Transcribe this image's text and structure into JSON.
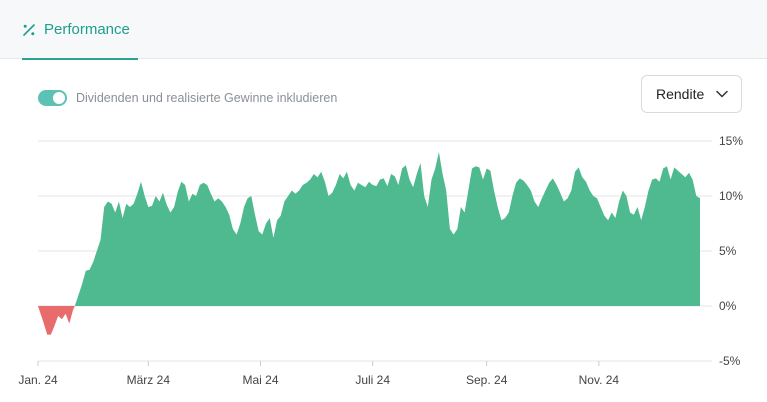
{
  "tab": {
    "label": "Performance",
    "icon": "percent-icon",
    "color": "#1e9e8b"
  },
  "toggle": {
    "label": "Dividenden und realisierte Gewinne inkludieren",
    "checked": true,
    "color": "#5cc3b4"
  },
  "select": {
    "value": "Rendite",
    "icon": "chevron-down-icon"
  },
  "chart_data": {
    "type": "area",
    "positive_color": "#4fba90",
    "negative_color": "#e86c6c",
    "ylim": [
      -5,
      15
    ],
    "yticks": [
      {
        "value": 15,
        "label": "15%"
      },
      {
        "value": 10,
        "label": "10%"
      },
      {
        "value": 5,
        "label": "5%"
      },
      {
        "value": 0,
        "label": "0%"
      },
      {
        "value": -5,
        "label": "-5%"
      }
    ],
    "xlim": [
      0,
      360
    ],
    "xticks": [
      {
        "day": 0,
        "label": "Jan. 24"
      },
      {
        "day": 60,
        "label": "März 24"
      },
      {
        "day": 121,
        "label": "Mai 24"
      },
      {
        "day": 182,
        "label": "Juli 24"
      },
      {
        "day": 244,
        "label": "Sep. 24"
      },
      {
        "day": 305,
        "label": "Nov. 24"
      }
    ],
    "x": [
      0,
      3,
      5,
      7,
      9,
      11,
      13,
      15,
      17,
      19,
      20,
      22,
      24,
      26,
      28,
      30,
      32,
      34,
      36,
      38,
      40,
      42,
      44,
      46,
      48,
      50,
      52,
      54,
      56,
      58,
      60,
      62,
      64,
      66,
      68,
      70,
      72,
      74,
      76,
      78,
      80,
      82,
      84,
      86,
      88,
      90,
      92,
      94,
      96,
      98,
      100,
      102,
      104,
      106,
      108,
      110,
      112,
      114,
      116,
      118,
      120,
      122,
      124,
      126,
      128,
      130,
      132,
      134,
      136,
      138,
      140,
      142,
      144,
      146,
      148,
      150,
      152,
      154,
      156,
      158,
      160,
      162,
      164,
      166,
      168,
      170,
      172,
      174,
      176,
      178,
      180,
      182,
      184,
      186,
      188,
      190,
      192,
      194,
      196,
      198,
      200,
      202,
      204,
      206,
      208,
      210,
      212,
      214,
      216,
      218,
      220,
      222,
      224,
      226,
      228,
      230,
      232,
      234,
      236,
      238,
      240,
      242,
      244,
      246,
      248,
      250,
      252,
      254,
      256,
      258,
      260,
      262,
      264,
      266,
      268,
      270,
      272,
      274,
      276,
      278,
      280,
      282,
      284,
      286,
      288,
      290,
      292,
      294,
      296,
      298,
      300,
      302,
      304,
      306,
      308,
      310,
      312,
      314,
      316,
      318,
      320,
      322,
      324,
      326,
      328,
      330,
      332,
      334,
      336,
      338,
      340,
      342,
      344,
      346,
      348,
      350,
      352,
      354,
      356,
      358,
      360
    ],
    "y": [
      0,
      -1.5,
      -2.6,
      -2.6,
      -1.8,
      -0.9,
      -1.2,
      -0.7,
      -1.6,
      -0.4,
      0,
      1.0,
      2.0,
      3.2,
      3.3,
      4.0,
      5.0,
      6.0,
      9.0,
      9.5,
      9.3,
      8.5,
      9.5,
      8.0,
      9.3,
      9.0,
      9.3,
      10.2,
      11.3,
      10.0,
      9.0,
      9.1,
      10.0,
      9.5,
      10.3,
      9.2,
      8.5,
      9.0,
      10.4,
      11.3,
      11.0,
      9.5,
      10.2,
      10.0,
      11.0,
      11.2,
      11.0,
      10.2,
      9.5,
      9.8,
      9.5,
      9.0,
      8.3,
      7.0,
      6.5,
      7.5,
      9.0,
      9.8,
      10.0,
      8.3,
      6.8,
      6.5,
      7.5,
      8.0,
      6.2,
      7.8,
      8.2,
      9.5,
      10.0,
      10.5,
      10.2,
      10.5,
      11.0,
      11.2,
      11.5,
      12.0,
      11.7,
      12.2,
      11.3,
      10.0,
      10.3,
      11.0,
      12.0,
      11.6,
      12.2,
      11.0,
      10.5,
      11.2,
      11.0,
      10.8,
      11.3,
      11.0,
      10.9,
      11.5,
      11.6,
      10.9,
      12.0,
      11.8,
      11.0,
      12.5,
      12.8,
      11.5,
      10.8,
      12.0,
      13.0,
      10.0,
      9.0,
      11.5,
      12.5,
      14.0,
      12.0,
      10.5,
      7.0,
      6.5,
      7.0,
      9.0,
      8.5,
      10.5,
      12.5,
      12.7,
      12.6,
      11.5,
      12.5,
      12.3,
      10.5,
      9.0,
      7.8,
      8.0,
      8.5,
      10.0,
      11.2,
      11.6,
      11.4,
      11.0,
      10.5,
      9.5,
      9.0,
      9.8,
      10.5,
      11.2,
      11.6,
      11.0,
      10.3,
      9.5,
      9.8,
      10.5,
      12.2,
      12.6,
      11.7,
      11.3,
      10.5,
      10.0,
      9.8,
      9.0,
      8.2,
      7.8,
      8.5,
      8.0,
      9.5,
      10.5,
      10.0,
      8.5,
      8.3,
      9.0,
      7.8,
      9.0,
      10.5,
      11.5,
      11.6,
      11.3,
      12.5,
      12.7,
      11.5,
      12.6,
      12.3,
      12.0,
      11.7,
      12.1,
      11.5,
      10.0,
      9.8
    ]
  }
}
